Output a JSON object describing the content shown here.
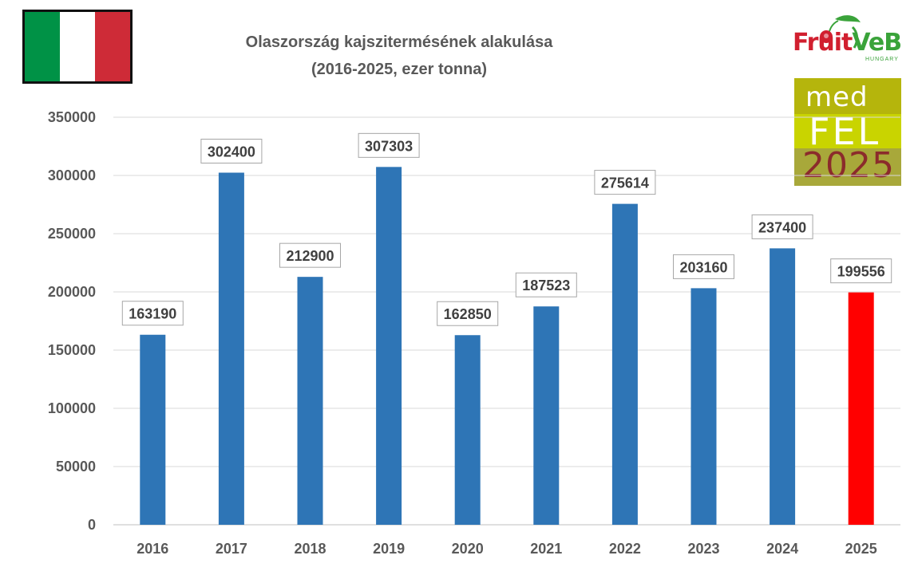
{
  "header": {
    "title_line1": "Olaszország kajszitermésének alakulása",
    "title_line2": "(2016-2025, ezer tonna)"
  },
  "flag": {
    "colors": [
      "#009246",
      "#ffffff",
      "#ce2b37"
    ]
  },
  "logos": {
    "fruitveb": {
      "text_fruit": "Fruit",
      "text_veb": "VeB",
      "subtext": "HUNGARY"
    },
    "medfel": {
      "line1": "med",
      "line2": "FEL",
      "line3": "2025"
    }
  },
  "chart_data": {
    "type": "bar",
    "title": "Olaszország kajszitermésének alakulása (2016-2025, ezer tonna)",
    "categories": [
      "2016",
      "2017",
      "2018",
      "2019",
      "2020",
      "2021",
      "2022",
      "2023",
      "2024",
      "2025"
    ],
    "series": [
      {
        "values": [
          163190,
          302400,
          212900,
          307303,
          162850,
          187523,
          275614,
          203160,
          237400,
          199556
        ]
      }
    ],
    "ylim": [
      0,
      350000
    ],
    "yticks": [
      0,
      50000,
      100000,
      150000,
      200000,
      250000,
      300000,
      350000
    ],
    "grid": true,
    "colors": {
      "bar": "#2e75b6",
      "highlight": "#ff0000",
      "highlight_index": 9,
      "grid": "#d9d9d9",
      "axis": "#bfbfbf"
    }
  }
}
